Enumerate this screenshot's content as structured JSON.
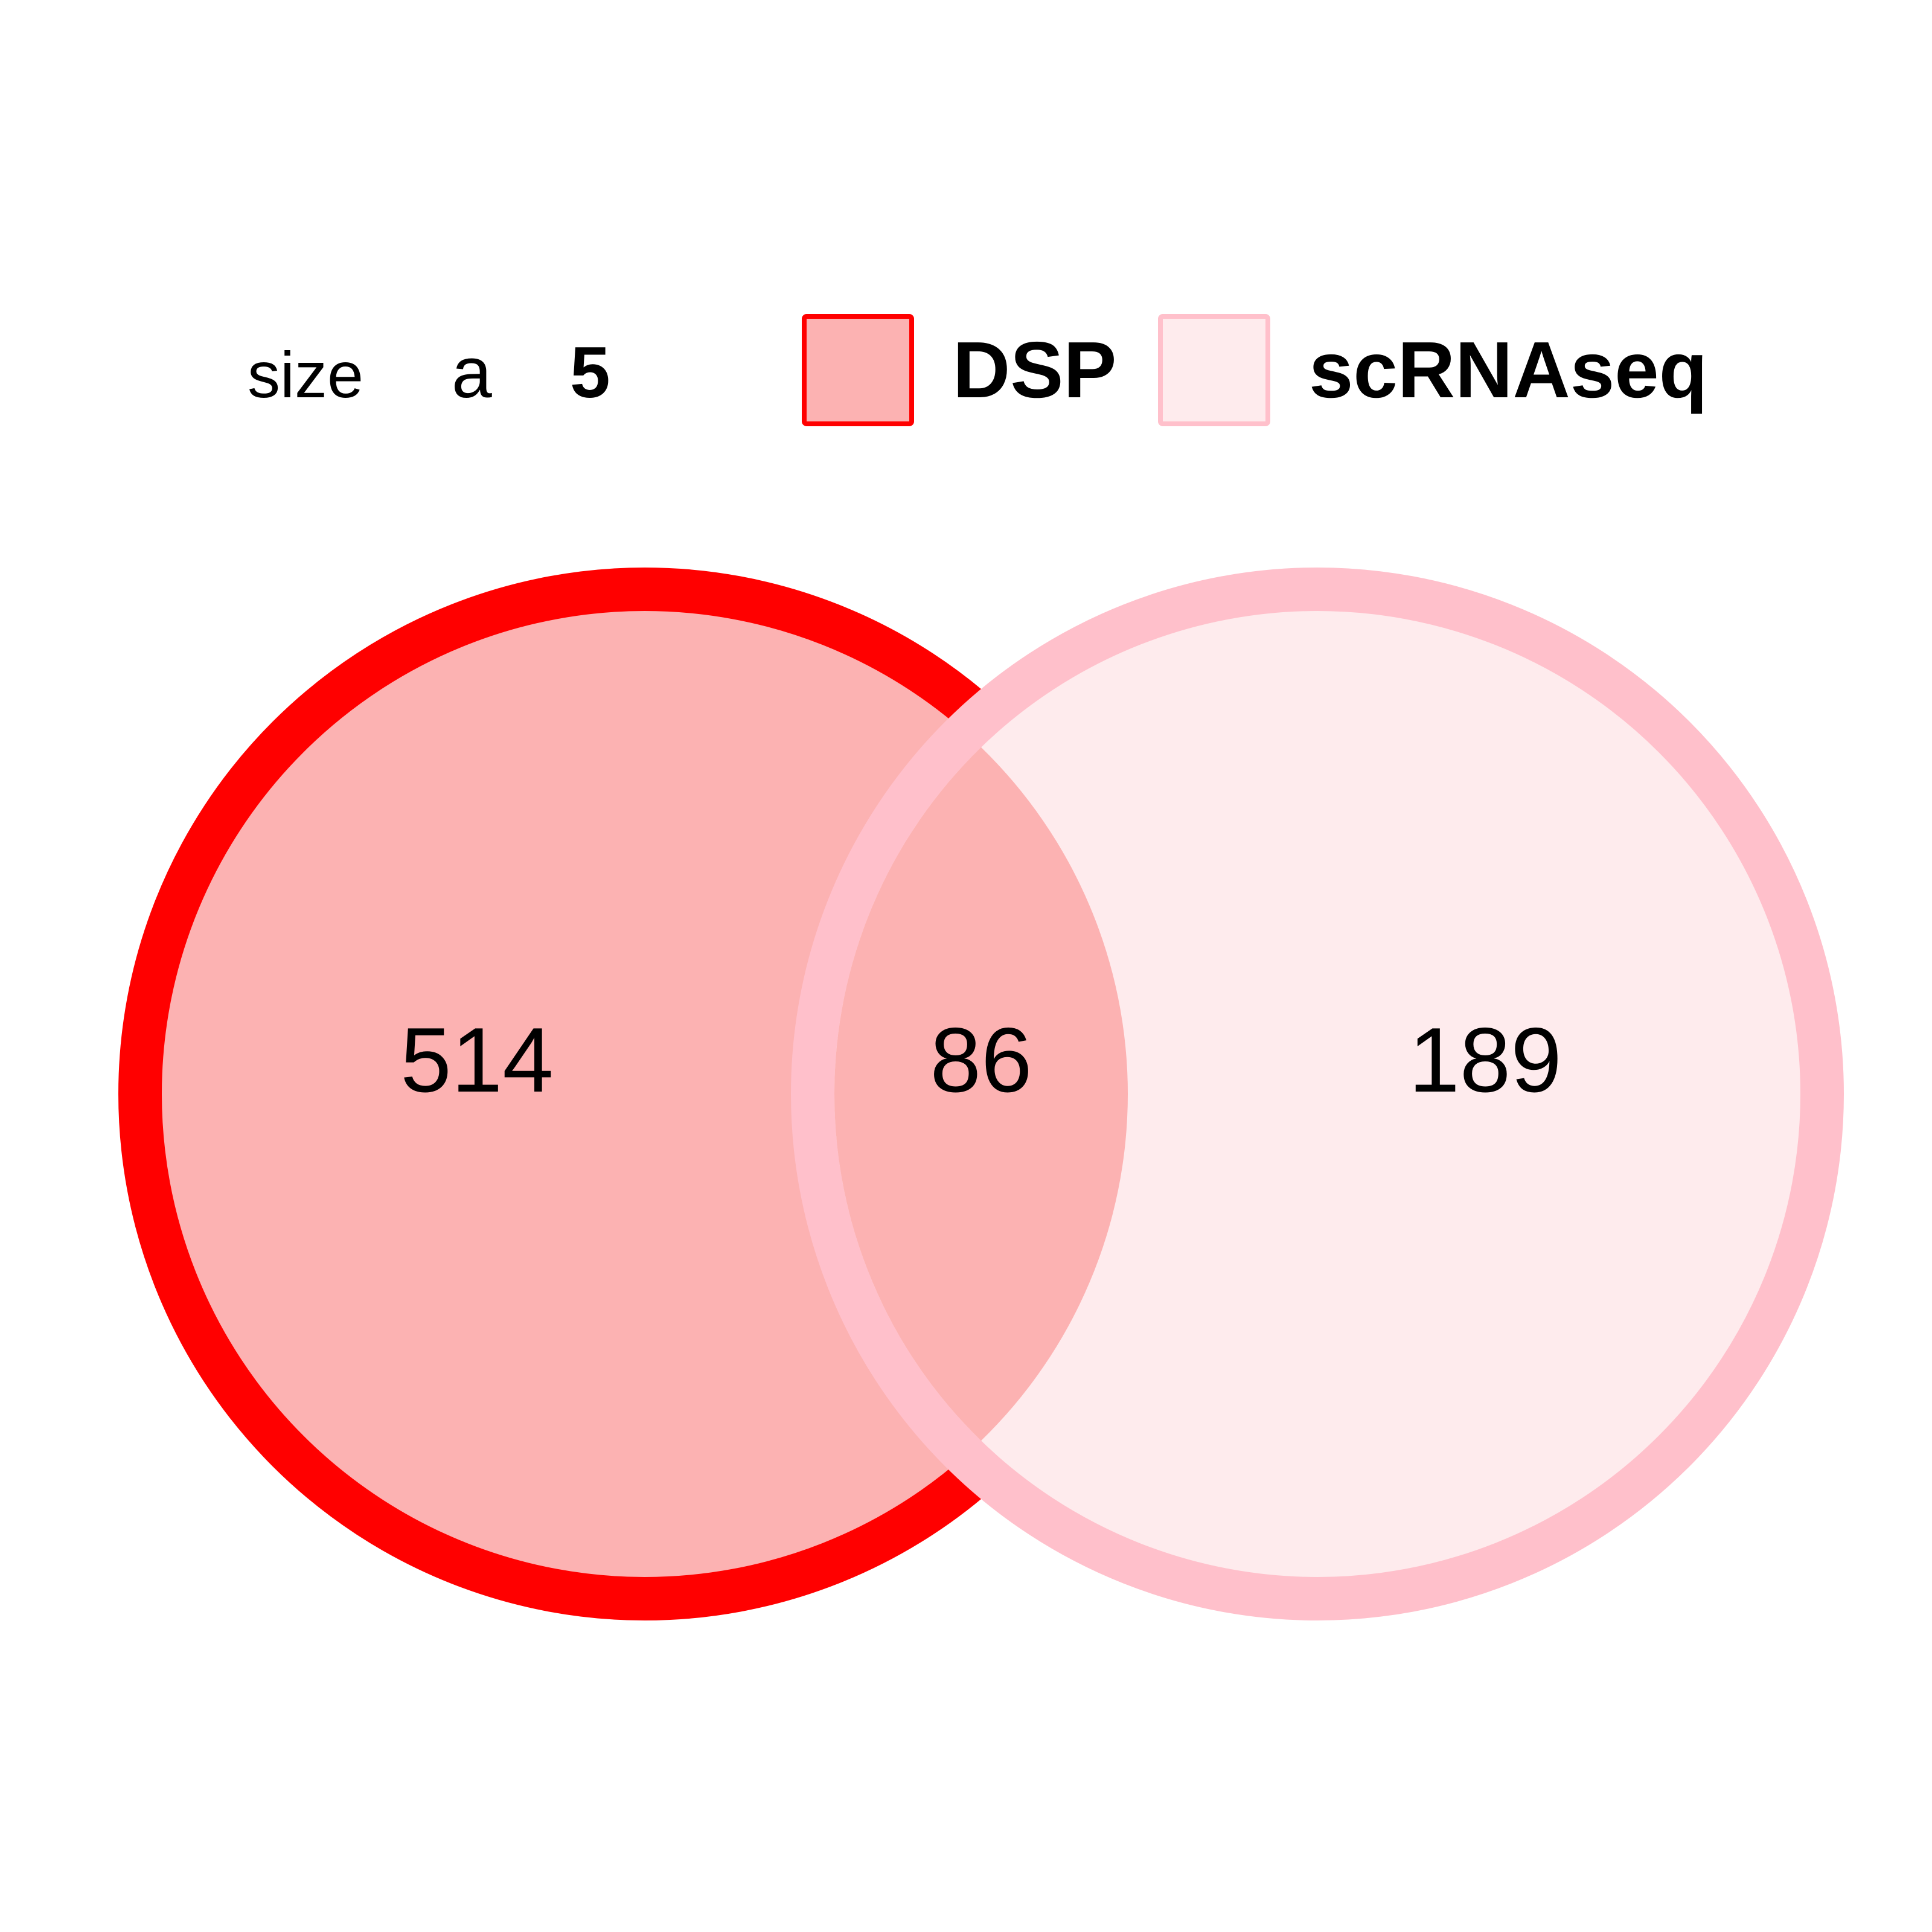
{
  "chart_data": {
    "type": "venn",
    "sets": [
      {
        "name": "DSP",
        "fill": "#FCB2B2",
        "border": "#FF0000"
      },
      {
        "name": "scRNAseq",
        "fill": "#FEEBED",
        "border": "#FFC0CB"
      }
    ],
    "regions": {
      "only_a": 514,
      "intersection": 86,
      "only_b": 189
    },
    "legend": {
      "title": "size",
      "key_glyph": "a",
      "key_value": "5",
      "placement": "top"
    }
  }
}
